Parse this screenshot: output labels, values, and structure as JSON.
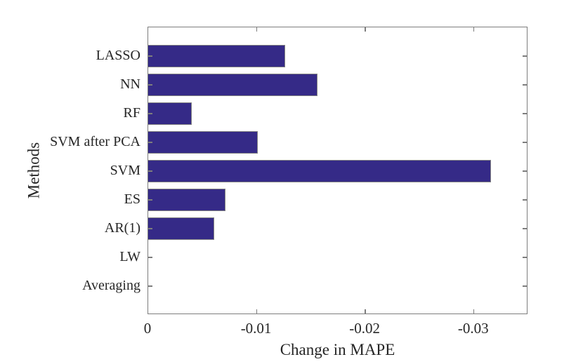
{
  "chart_data": {
    "type": "bar",
    "orientation": "horizontal",
    "categories": [
      "LASSO",
      "NN",
      "RF",
      "SVM after PCA",
      "SVM",
      "ES",
      "AR(1)",
      "LW",
      "Averaging"
    ],
    "values": [
      -0.0126,
      -0.0156,
      -0.004,
      -0.0101,
      -0.0316,
      -0.0071,
      -0.0061,
      0,
      0
    ],
    "xlabel": "Change in MAPE",
    "ylabel": "Methods",
    "x_ticks": [
      {
        "label": "0",
        "value": 0
      },
      {
        "label": "-0.01",
        "value": -0.01
      },
      {
        "label": "-0.02",
        "value": -0.02
      },
      {
        "label": "-0.03",
        "value": -0.03
      }
    ],
    "xlim": [
      0,
      -0.035
    ],
    "grid": false,
    "legend": "none",
    "colors": {
      "bar_fill": "#352A87",
      "bar_edge": "#828282",
      "axis": "#7d7d7d",
      "text": "#262626"
    }
  }
}
